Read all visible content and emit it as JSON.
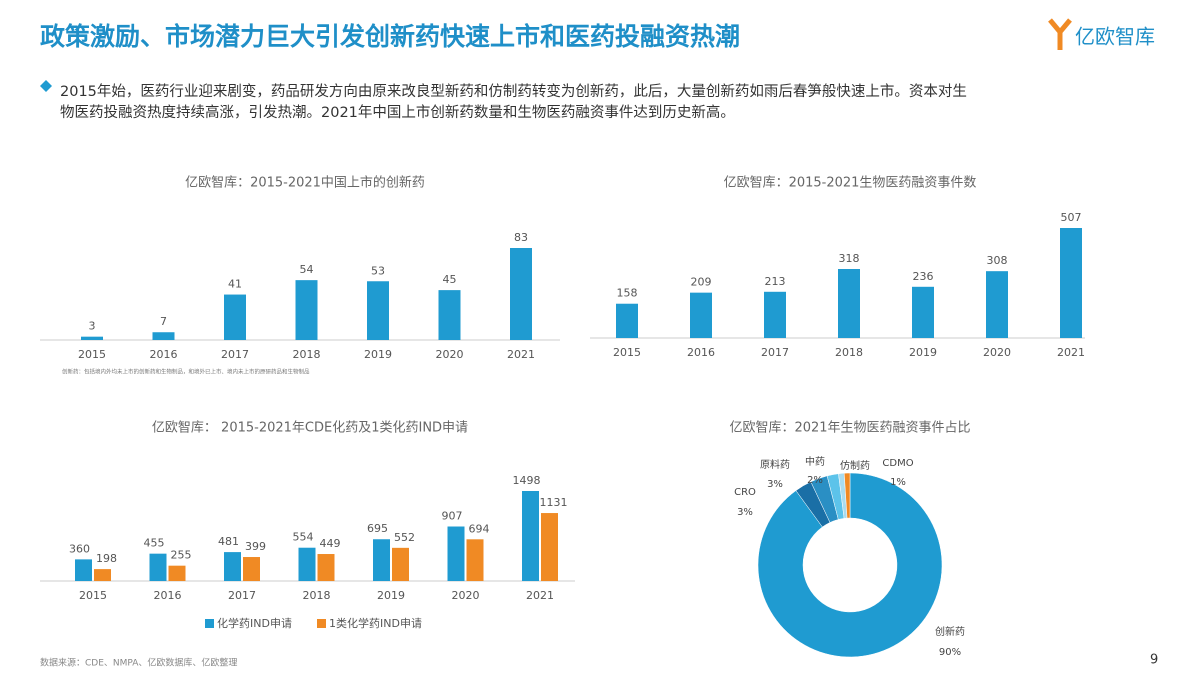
{
  "header": {
    "title": "政策激励、市场潜力巨大引发创新药快速上市和医药投融资热潮",
    "logo": "亿欧智库"
  },
  "bullet": {
    "lines": [
      "2015年始，医药行业迎来剧变，药品研发方向由原来改良型新药和仿制药转变为创新药，此后，大量创新药如雨后春笋般快速上市。资本对生",
      "物医药投融资热度持续高涨，引发热潮。2021年中国上市创新药数量和生物医药融资事件达到历史新高。"
    ]
  },
  "chart_data": [
    {
      "type": "bar",
      "title": "亿欧智库：2015-2021中国上市的创新药",
      "categories": [
        "2015",
        "2016",
        "2017",
        "2018",
        "2019",
        "2020",
        "2021"
      ],
      "values": [
        3,
        7,
        41,
        54,
        53,
        45,
        83
      ],
      "color": "#1f9bd1",
      "note": "创新药：包括境内外均未上市的创新药和生物制品，和境外已上市、境内未上市的原研药品和生物制品"
    },
    {
      "type": "bar",
      "title": "亿欧智库：2015-2021生物医药融资事件数",
      "categories": [
        "2015",
        "2016",
        "2017",
        "2018",
        "2019",
        "2020",
        "2021"
      ],
      "values": [
        158,
        209,
        213,
        318,
        236,
        308,
        507
      ],
      "color": "#1f9bd1"
    },
    {
      "type": "bar",
      "title": "亿欧智库： 2015-2021年CDE化药及1类化药IND申请",
      "categories": [
        "2015",
        "2016",
        "2017",
        "2018",
        "2019",
        "2020",
        "2021"
      ],
      "series": [
        {
          "name": "化学药IND申请",
          "color": "#1f9bd1",
          "values": [
            360,
            455,
            481,
            554,
            695,
            907,
            1498
          ]
        },
        {
          "name": "1类化学药IND申请",
          "color": "#f08a24",
          "values": [
            198,
            255,
            399,
            449,
            552,
            694,
            1131
          ]
        }
      ]
    },
    {
      "type": "pie",
      "title": "亿欧智库：2021年生物医药融资事件占比",
      "categories": [
        "创新药",
        "CRO",
        "原料药",
        "中药",
        "仿制药",
        "CDMO"
      ],
      "values": [
        90,
        3,
        3,
        2,
        1,
        1
      ],
      "value_labels": [
        "90%",
        "3%",
        "3%",
        "2%",
        null,
        "1%"
      ],
      "colors": [
        "#1f9bd1",
        "#1a6fa6",
        "#2a8fc4",
        "#5cc3ea",
        "#a9dcf0",
        "#f08a24"
      ]
    }
  ],
  "source": "数据来源：CDE、NMPA、亿欧数据库、亿欧整理",
  "page_number": "9"
}
